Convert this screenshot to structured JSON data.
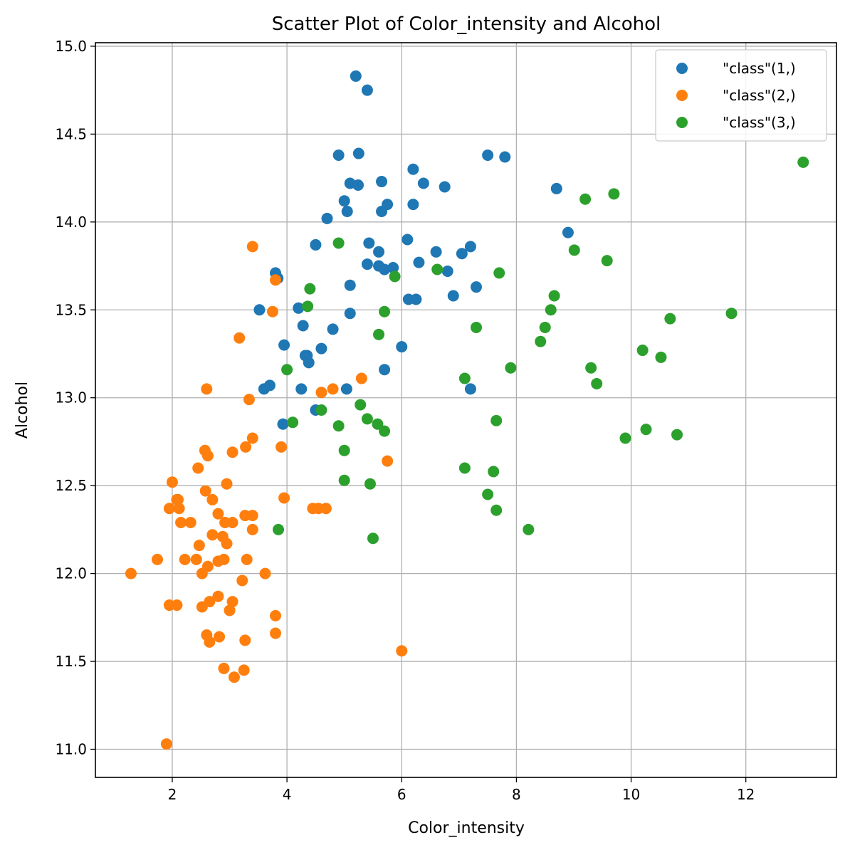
{
  "chart_data": {
    "type": "scatter",
    "title": "Scatter Plot of Color_intensity and Alcohol",
    "xlabel": "Color_intensity",
    "ylabel": "Alcohol",
    "xlim": [
      0.66,
      13.58
    ],
    "ylim": [
      10.84,
      15.02
    ],
    "xticks": [
      2,
      4,
      6,
      8,
      10,
      12
    ],
    "yticks": [
      11.0,
      11.5,
      12.0,
      12.5,
      13.0,
      13.5,
      14.0,
      14.5,
      15.0
    ],
    "xtick_labels": [
      "2",
      "4",
      "6",
      "8",
      "10",
      "12"
    ],
    "ytick_labels": [
      "11.0",
      "11.5",
      "12.0",
      "12.5",
      "13.0",
      "13.5",
      "14.0",
      "14.5",
      "15.0"
    ],
    "grid": true,
    "legend_position": "top-right",
    "series": [
      {
        "name": "\"class\"(1,)",
        "color": "#1f77b4",
        "points": [
          [
            5.2,
            14.83
          ],
          [
            5.4,
            14.75
          ],
          [
            4.9,
            14.38
          ],
          [
            5.25,
            14.39
          ],
          [
            7.5,
            14.38
          ],
          [
            7.8,
            14.37
          ],
          [
            5.1,
            14.22
          ],
          [
            5.24,
            14.21
          ],
          [
            5.65,
            14.23
          ],
          [
            6.2,
            14.3
          ],
          [
            6.38,
            14.22
          ],
          [
            6.75,
            14.2
          ],
          [
            5.0,
            14.12
          ],
          [
            5.05,
            14.06
          ],
          [
            5.65,
            14.06
          ],
          [
            5.75,
            14.1
          ],
          [
            6.2,
            14.1
          ],
          [
            4.7,
            14.02
          ],
          [
            8.7,
            14.19
          ],
          [
            8.9,
            13.94
          ],
          [
            4.5,
            13.87
          ],
          [
            5.43,
            13.88
          ],
          [
            6.1,
            13.9
          ],
          [
            5.6,
            13.83
          ],
          [
            6.6,
            13.83
          ],
          [
            7.05,
            13.82
          ],
          [
            7.2,
            13.86
          ],
          [
            5.4,
            13.76
          ],
          [
            5.6,
            13.75
          ],
          [
            5.7,
            13.73
          ],
          [
            5.85,
            13.74
          ],
          [
            6.3,
            13.77
          ],
          [
            6.8,
            13.72
          ],
          [
            3.8,
            13.71
          ],
          [
            3.84,
            13.68
          ],
          [
            5.1,
            13.64
          ],
          [
            6.12,
            13.56
          ],
          [
            6.25,
            13.56
          ],
          [
            6.9,
            13.58
          ],
          [
            7.3,
            13.63
          ],
          [
            3.52,
            13.5
          ],
          [
            4.2,
            13.51
          ],
          [
            5.1,
            13.48
          ],
          [
            4.28,
            13.41
          ],
          [
            4.8,
            13.39
          ],
          [
            3.95,
            13.3
          ],
          [
            4.6,
            13.28
          ],
          [
            6.0,
            13.29
          ],
          [
            4.32,
            13.24
          ],
          [
            4.35,
            13.24
          ],
          [
            4.38,
            13.2
          ],
          [
            5.7,
            13.16
          ],
          [
            3.6,
            13.05
          ],
          [
            3.7,
            13.07
          ],
          [
            4.25,
            13.05
          ],
          [
            5.04,
            13.05
          ],
          [
            7.2,
            13.05
          ],
          [
            4.5,
            12.93
          ],
          [
            3.93,
            12.85
          ]
        ]
      },
      {
        "name": "\"class\"(2,)",
        "color": "#ff7f0e",
        "points": [
          [
            3.4,
            13.86
          ],
          [
            3.8,
            13.67
          ],
          [
            3.75,
            13.49
          ],
          [
            3.17,
            13.34
          ],
          [
            2.6,
            13.05
          ],
          [
            5.3,
            13.11
          ],
          [
            4.6,
            13.03
          ],
          [
            4.8,
            13.05
          ],
          [
            3.34,
            12.99
          ],
          [
            3.4,
            12.77
          ],
          [
            3.9,
            12.72
          ],
          [
            3.28,
            12.72
          ],
          [
            2.57,
            12.7
          ],
          [
            2.62,
            12.67
          ],
          [
            3.05,
            12.69
          ],
          [
            5.75,
            12.64
          ],
          [
            2.45,
            12.6
          ],
          [
            2.95,
            12.51
          ],
          [
            2.0,
            12.52
          ],
          [
            2.58,
            12.47
          ],
          [
            2.1,
            12.42
          ],
          [
            2.08,
            12.42
          ],
          [
            2.7,
            12.42
          ],
          [
            3.95,
            12.43
          ],
          [
            1.95,
            12.37
          ],
          [
            2.12,
            12.37
          ],
          [
            4.45,
            12.37
          ],
          [
            4.55,
            12.37
          ],
          [
            4.68,
            12.37
          ],
          [
            2.8,
            12.34
          ],
          [
            3.27,
            12.33
          ],
          [
            3.4,
            12.33
          ],
          [
            2.15,
            12.29
          ],
          [
            2.32,
            12.29
          ],
          [
            2.92,
            12.29
          ],
          [
            3.05,
            12.29
          ],
          [
            3.4,
            12.25
          ],
          [
            2.7,
            12.22
          ],
          [
            2.88,
            12.21
          ],
          [
            2.95,
            12.17
          ],
          [
            2.47,
            12.16
          ],
          [
            1.74,
            12.08
          ],
          [
            2.22,
            12.08
          ],
          [
            2.42,
            12.08
          ],
          [
            2.8,
            12.07
          ],
          [
            2.9,
            12.08
          ],
          [
            3.3,
            12.08
          ],
          [
            2.62,
            12.04
          ],
          [
            1.28,
            12.0
          ],
          [
            2.52,
            12.0
          ],
          [
            3.62,
            12.0
          ],
          [
            3.22,
            11.96
          ],
          [
            2.8,
            11.87
          ],
          [
            2.65,
            11.84
          ],
          [
            3.05,
            11.84
          ],
          [
            1.95,
            11.82
          ],
          [
            2.08,
            11.82
          ],
          [
            2.52,
            11.81
          ],
          [
            3.0,
            11.79
          ],
          [
            3.8,
            11.76
          ],
          [
            2.6,
            11.65
          ],
          [
            2.82,
            11.64
          ],
          [
            3.8,
            11.66
          ],
          [
            2.65,
            11.61
          ],
          [
            3.27,
            11.62
          ],
          [
            6.0,
            11.56
          ],
          [
            2.9,
            11.46
          ],
          [
            3.25,
            11.45
          ],
          [
            3.08,
            11.41
          ],
          [
            1.9,
            11.03
          ]
        ]
      },
      {
        "name": "\"class\"(3,)",
        "color": "#2ca02c",
        "points": [
          [
            13.0,
            14.34
          ],
          [
            9.7,
            14.16
          ],
          [
            9.2,
            14.13
          ],
          [
            4.9,
            13.88
          ],
          [
            9.01,
            13.84
          ],
          [
            9.58,
            13.78
          ],
          [
            6.62,
            13.73
          ],
          [
            7.7,
            13.71
          ],
          [
            5.88,
            13.69
          ],
          [
            4.4,
            13.62
          ],
          [
            8.66,
            13.58
          ],
          [
            4.36,
            13.52
          ],
          [
            5.7,
            13.49
          ],
          [
            8.6,
            13.5
          ],
          [
            11.75,
            13.48
          ],
          [
            10.68,
            13.45
          ],
          [
            7.3,
            13.4
          ],
          [
            8.5,
            13.4
          ],
          [
            5.6,
            13.36
          ],
          [
            8.42,
            13.32
          ],
          [
            10.2,
            13.27
          ],
          [
            10.52,
            13.23
          ],
          [
            4.0,
            13.16
          ],
          [
            7.9,
            13.17
          ],
          [
            9.3,
            13.17
          ],
          [
            7.1,
            13.11
          ],
          [
            9.4,
            13.08
          ],
          [
            5.28,
            12.96
          ],
          [
            4.6,
            12.93
          ],
          [
            5.4,
            12.88
          ],
          [
            7.65,
            12.87
          ],
          [
            4.1,
            12.86
          ],
          [
            5.58,
            12.85
          ],
          [
            4.9,
            12.84
          ],
          [
            10.26,
            12.82
          ],
          [
            5.7,
            12.81
          ],
          [
            10.8,
            12.79
          ],
          [
            9.9,
            12.77
          ],
          [
            5.0,
            12.7
          ],
          [
            7.1,
            12.6
          ],
          [
            7.6,
            12.58
          ],
          [
            5.0,
            12.53
          ],
          [
            5.45,
            12.51
          ],
          [
            7.5,
            12.45
          ],
          [
            7.65,
            12.36
          ],
          [
            3.85,
            12.25
          ],
          [
            8.21,
            12.25
          ],
          [
            5.5,
            12.2
          ]
        ]
      }
    ]
  }
}
